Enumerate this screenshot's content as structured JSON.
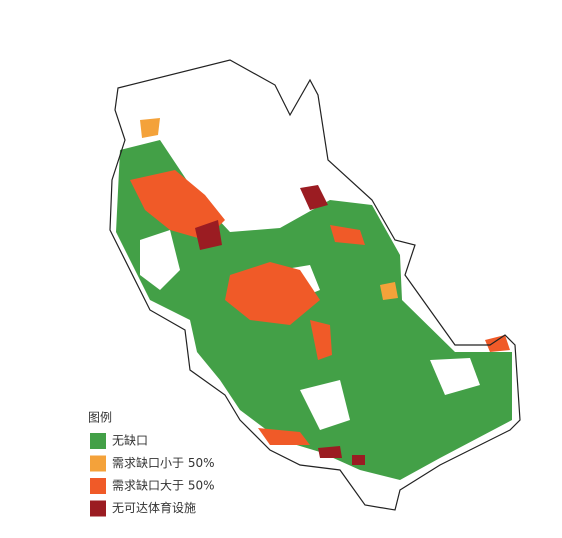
{
  "legend": {
    "title": "图例",
    "items": [
      {
        "label": "无缺口",
        "color": "#43a047"
      },
      {
        "label": "需求缺口小于 50%",
        "color": "#f4a23a"
      },
      {
        "label": "需求缺口大于 50%",
        "color": "#f05a28"
      },
      {
        "label": "无可达体育设施",
        "color": "#9b1c22"
      }
    ]
  }
}
